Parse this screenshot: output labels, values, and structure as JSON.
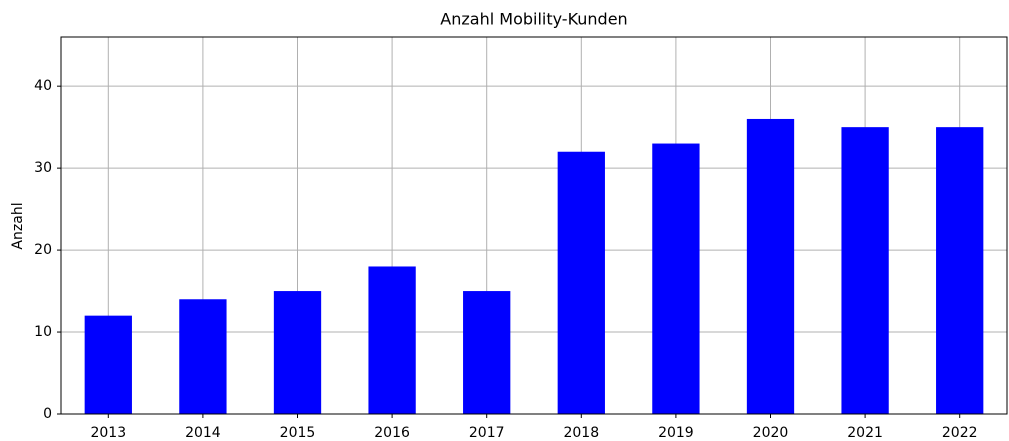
{
  "chart_data": {
    "type": "bar",
    "title": "Anzahl Mobility-Kunden",
    "ylabel": "Anzahl",
    "categories": [
      "2013",
      "2014",
      "2015",
      "2016",
      "2017",
      "2018",
      "2019",
      "2020",
      "2021",
      "2022"
    ],
    "values": [
      12,
      14,
      15,
      18,
      15,
      32,
      33,
      36,
      35,
      35
    ],
    "color": "#0000ff",
    "ylim": [
      0,
      46
    ],
    "yticks": [
      0,
      10,
      20,
      30,
      40
    ],
    "grid": true
  }
}
